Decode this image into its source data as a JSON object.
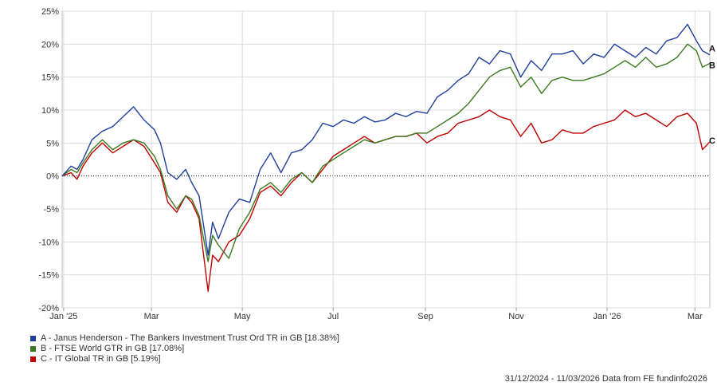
{
  "chart_data": {
    "type": "line",
    "title": "",
    "xlabel": "",
    "ylabel": "",
    "x_range": [
      "2024-12-31",
      "2026-03-11"
    ],
    "ylim": [
      -20,
      25
    ],
    "y_ticks": [
      -20,
      -15,
      -10,
      -5,
      0,
      5,
      10,
      15,
      20,
      25
    ],
    "y_tick_labels": [
      "-20%",
      "-15%",
      "-10%",
      "-5%",
      "0%",
      "5%",
      "10%",
      "15%",
      "20%",
      "25%"
    ],
    "x_ticks": [
      {
        "date": "2025-01-01",
        "label": "Jan '25"
      },
      {
        "date": "2025-03-01",
        "label": "Mar"
      },
      {
        "date": "2025-05-01",
        "label": "May"
      },
      {
        "date": "2025-07-01",
        "label": "Jul"
      },
      {
        "date": "2025-09-01",
        "label": "Sep"
      },
      {
        "date": "2025-11-01",
        "label": "Nov"
      },
      {
        "date": "2026-01-01",
        "label": "Jan '26"
      },
      {
        "date": "2026-03-01",
        "label": "Mar"
      }
    ],
    "grid": true,
    "zero_line": "dotted",
    "legend_position": "bottom-left",
    "series": [
      {
        "name": "A - Janus Henderson - The Bankers Investment Trust Ord TR in GB [18.38%]",
        "end_label": "A",
        "color": "#1f3f9e",
        "points": [
          [
            "2024-12-31",
            0
          ],
          [
            "2025-01-06",
            1.5
          ],
          [
            "2025-01-10",
            1.0
          ],
          [
            "2025-01-14",
            2.5
          ],
          [
            "2025-01-20",
            5.5
          ],
          [
            "2025-01-27",
            6.8
          ],
          [
            "2025-02-03",
            7.5
          ],
          [
            "2025-02-10",
            9.0
          ],
          [
            "2025-02-17",
            10.5
          ],
          [
            "2025-02-24",
            8.5
          ],
          [
            "2025-03-03",
            7.0
          ],
          [
            "2025-03-07",
            5.0
          ],
          [
            "2025-03-12",
            0.5
          ],
          [
            "2025-03-18",
            -0.5
          ],
          [
            "2025-03-24",
            1.0
          ],
          [
            "2025-03-28",
            -1.0
          ],
          [
            "2025-04-02",
            -3.0
          ],
          [
            "2025-04-08",
            -12.0
          ],
          [
            "2025-04-11",
            -7.0
          ],
          [
            "2025-04-15",
            -9.5
          ],
          [
            "2025-04-22",
            -5.5
          ],
          [
            "2025-04-29",
            -3.5
          ],
          [
            "2025-05-06",
            -4.0
          ],
          [
            "2025-05-13",
            1.0
          ],
          [
            "2025-05-20",
            3.5
          ],
          [
            "2025-05-27",
            0.5
          ],
          [
            "2025-06-03",
            3.5
          ],
          [
            "2025-06-10",
            4.0
          ],
          [
            "2025-06-17",
            5.5
          ],
          [
            "2025-06-24",
            8.0
          ],
          [
            "2025-07-01",
            7.5
          ],
          [
            "2025-07-08",
            8.5
          ],
          [
            "2025-07-15",
            8.0
          ],
          [
            "2025-07-22",
            9.0
          ],
          [
            "2025-07-29",
            8.2
          ],
          [
            "2025-08-05",
            8.5
          ],
          [
            "2025-08-12",
            9.5
          ],
          [
            "2025-08-19",
            9.0
          ],
          [
            "2025-08-26",
            9.8
          ],
          [
            "2025-09-02",
            9.5
          ],
          [
            "2025-09-09",
            12.0
          ],
          [
            "2025-09-16",
            13.0
          ],
          [
            "2025-09-23",
            14.5
          ],
          [
            "2025-09-30",
            15.5
          ],
          [
            "2025-10-07",
            18.0
          ],
          [
            "2025-10-14",
            17.0
          ],
          [
            "2025-10-21",
            19.0
          ],
          [
            "2025-10-28",
            18.5
          ],
          [
            "2025-11-04",
            15.0
          ],
          [
            "2025-11-11",
            17.5
          ],
          [
            "2025-11-18",
            16.0
          ],
          [
            "2025-11-25",
            18.5
          ],
          [
            "2025-12-02",
            18.5
          ],
          [
            "2025-12-09",
            19.0
          ],
          [
            "2025-12-16",
            17.0
          ],
          [
            "2025-12-23",
            18.5
          ],
          [
            "2025-12-30",
            18.0
          ],
          [
            "2026-01-06",
            20.0
          ],
          [
            "2026-01-13",
            19.0
          ],
          [
            "2026-01-20",
            18.0
          ],
          [
            "2026-01-27",
            19.5
          ],
          [
            "2026-02-03",
            18.5
          ],
          [
            "2026-02-10",
            20.5
          ],
          [
            "2026-02-17",
            21.0
          ],
          [
            "2026-02-24",
            23.0
          ],
          [
            "2026-03-02",
            20.5
          ],
          [
            "2026-03-06",
            19.0
          ],
          [
            "2026-03-11",
            18.38
          ]
        ]
      },
      {
        "name": "B - FTSE World GTR in GB [17.08%]",
        "end_label": "B",
        "color": "#3a7a1f",
        "points": [
          [
            "2024-12-31",
            0
          ],
          [
            "2025-01-06",
            1.0
          ],
          [
            "2025-01-10",
            0.5
          ],
          [
            "2025-01-14",
            2.0
          ],
          [
            "2025-01-20",
            4.0
          ],
          [
            "2025-01-27",
            5.5
          ],
          [
            "2025-02-03",
            4.0
          ],
          [
            "2025-02-10",
            5.0
          ],
          [
            "2025-02-17",
            5.5
          ],
          [
            "2025-02-24",
            5.0
          ],
          [
            "2025-03-03",
            3.0
          ],
          [
            "2025-03-07",
            1.0
          ],
          [
            "2025-03-12",
            -3.0
          ],
          [
            "2025-03-18",
            -5.0
          ],
          [
            "2025-03-24",
            -3.0
          ],
          [
            "2025-03-28",
            -3.5
          ],
          [
            "2025-04-02",
            -6.0
          ],
          [
            "2025-04-08",
            -13.0
          ],
          [
            "2025-04-11",
            -9.0
          ],
          [
            "2025-04-15",
            -10.5
          ],
          [
            "2025-04-22",
            -12.5
          ],
          [
            "2025-04-29",
            -8.0
          ],
          [
            "2025-05-06",
            -5.5
          ],
          [
            "2025-05-13",
            -2.0
          ],
          [
            "2025-05-20",
            -1.0
          ],
          [
            "2025-05-27",
            -2.5
          ],
          [
            "2025-06-03",
            -0.5
          ],
          [
            "2025-06-10",
            0.5
          ],
          [
            "2025-06-17",
            -1.0
          ],
          [
            "2025-06-24",
            1.5
          ],
          [
            "2025-07-01",
            2.5
          ],
          [
            "2025-07-08",
            3.5
          ],
          [
            "2025-07-15",
            4.5
          ],
          [
            "2025-07-22",
            5.5
          ],
          [
            "2025-07-29",
            5.0
          ],
          [
            "2025-08-05",
            5.5
          ],
          [
            "2025-08-12",
            6.0
          ],
          [
            "2025-08-19",
            6.0
          ],
          [
            "2025-08-26",
            6.5
          ],
          [
            "2025-09-02",
            6.5
          ],
          [
            "2025-09-09",
            7.5
          ],
          [
            "2025-09-16",
            8.5
          ],
          [
            "2025-09-23",
            9.5
          ],
          [
            "2025-09-30",
            11.0
          ],
          [
            "2025-10-07",
            13.0
          ],
          [
            "2025-10-14",
            15.0
          ],
          [
            "2025-10-21",
            16.0
          ],
          [
            "2025-10-28",
            16.5
          ],
          [
            "2025-11-04",
            13.5
          ],
          [
            "2025-11-11",
            15.0
          ],
          [
            "2025-11-18",
            12.5
          ],
          [
            "2025-11-25",
            14.5
          ],
          [
            "2025-12-02",
            15.0
          ],
          [
            "2025-12-09",
            14.5
          ],
          [
            "2025-12-16",
            14.5
          ],
          [
            "2025-12-23",
            15.0
          ],
          [
            "2025-12-30",
            15.5
          ],
          [
            "2026-01-06",
            16.5
          ],
          [
            "2026-01-13",
            17.5
          ],
          [
            "2026-01-20",
            16.5
          ],
          [
            "2026-01-27",
            18.0
          ],
          [
            "2026-02-03",
            16.5
          ],
          [
            "2026-02-10",
            17.0
          ],
          [
            "2026-02-17",
            18.0
          ],
          [
            "2026-02-24",
            20.0
          ],
          [
            "2026-03-02",
            19.0
          ],
          [
            "2026-03-06",
            16.5
          ],
          [
            "2026-03-11",
            17.08
          ]
        ]
      },
      {
        "name": "C - IT Global TR in GB [5.19%]",
        "end_label": "C",
        "color": "#c00000",
        "points": [
          [
            "2024-12-31",
            0
          ],
          [
            "2025-01-06",
            0.5
          ],
          [
            "2025-01-10",
            -0.5
          ],
          [
            "2025-01-14",
            1.5
          ],
          [
            "2025-01-20",
            3.5
          ],
          [
            "2025-01-27",
            5.0
          ],
          [
            "2025-02-03",
            3.5
          ],
          [
            "2025-02-10",
            4.5
          ],
          [
            "2025-02-17",
            5.5
          ],
          [
            "2025-02-24",
            4.5
          ],
          [
            "2025-03-03",
            2.0
          ],
          [
            "2025-03-07",
            0.5
          ],
          [
            "2025-03-12",
            -4.0
          ],
          [
            "2025-03-18",
            -5.5
          ],
          [
            "2025-03-24",
            -3.0
          ],
          [
            "2025-03-28",
            -4.0
          ],
          [
            "2025-04-02",
            -6.5
          ],
          [
            "2025-04-08",
            -17.5
          ],
          [
            "2025-04-11",
            -12.0
          ],
          [
            "2025-04-15",
            -13.0
          ],
          [
            "2025-04-22",
            -10.0
          ],
          [
            "2025-04-29",
            -9.0
          ],
          [
            "2025-05-06",
            -6.5
          ],
          [
            "2025-05-13",
            -2.5
          ],
          [
            "2025-05-20",
            -1.5
          ],
          [
            "2025-05-27",
            -3.0
          ],
          [
            "2025-06-03",
            -1.0
          ],
          [
            "2025-06-10",
            0.5
          ],
          [
            "2025-06-17",
            -1.0
          ],
          [
            "2025-06-24",
            1.0
          ],
          [
            "2025-07-01",
            3.0
          ],
          [
            "2025-07-08",
            4.0
          ],
          [
            "2025-07-15",
            5.0
          ],
          [
            "2025-07-22",
            6.0
          ],
          [
            "2025-07-29",
            5.0
          ],
          [
            "2025-08-05",
            5.5
          ],
          [
            "2025-08-12",
            6.0
          ],
          [
            "2025-08-19",
            6.0
          ],
          [
            "2025-08-26",
            6.5
          ],
          [
            "2025-09-02",
            5.0
          ],
          [
            "2025-09-09",
            6.0
          ],
          [
            "2025-09-16",
            6.5
          ],
          [
            "2025-09-23",
            8.0
          ],
          [
            "2025-09-30",
            8.5
          ],
          [
            "2025-10-07",
            9.0
          ],
          [
            "2025-10-14",
            10.0
          ],
          [
            "2025-10-21",
            9.0
          ],
          [
            "2025-10-28",
            8.5
          ],
          [
            "2025-11-04",
            6.0
          ],
          [
            "2025-11-11",
            8.0
          ],
          [
            "2025-11-18",
            5.0
          ],
          [
            "2025-11-25",
            5.5
          ],
          [
            "2025-12-02",
            7.0
          ],
          [
            "2025-12-09",
            6.5
          ],
          [
            "2025-12-16",
            6.5
          ],
          [
            "2025-12-23",
            7.5
          ],
          [
            "2025-12-30",
            8.0
          ],
          [
            "2026-01-06",
            8.5
          ],
          [
            "2026-01-13",
            10.0
          ],
          [
            "2026-01-20",
            9.0
          ],
          [
            "2026-01-27",
            9.5
          ],
          [
            "2026-02-03",
            8.5
          ],
          [
            "2026-02-10",
            7.5
          ],
          [
            "2026-02-17",
            9.0
          ],
          [
            "2026-02-24",
            9.5
          ],
          [
            "2026-03-02",
            8.0
          ],
          [
            "2026-03-06",
            4.0
          ],
          [
            "2026-03-11",
            5.19
          ]
        ]
      }
    ]
  },
  "footer": {
    "date_range": "31/12/2024 - 11/03/2026",
    "source": "Data from FE fundinfo2026"
  }
}
